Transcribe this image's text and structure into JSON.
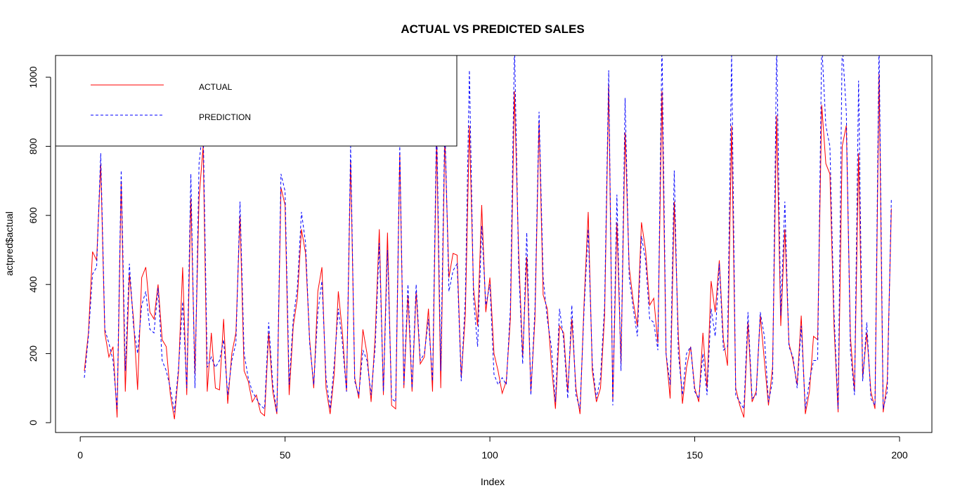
{
  "chart_data": {
    "type": "line",
    "title": "ACTUAL VS PREDICTED SALES",
    "xlabel": "Index",
    "ylabel": "actpred$actual",
    "xlim": [
      1,
      200
    ],
    "ylim": [
      0,
      1040
    ],
    "x_ticks": [
      0,
      50,
      100,
      150,
      200
    ],
    "y_ticks": [
      0,
      200,
      400,
      600,
      800,
      1000
    ],
    "grid": false,
    "legend_position": "top-left",
    "series": [
      {
        "name": "ACTUAL",
        "color": "#ff0000",
        "dash": "solid",
        "values": [
          150,
          260,
          495,
          470,
          750,
          260,
          190,
          220,
          15,
          700,
          90,
          430,
          300,
          95,
          420,
          450,
          320,
          300,
          400,
          240,
          220,
          80,
          10,
          150,
          450,
          80,
          650,
          140,
          650,
          800,
          90,
          260,
          100,
          95,
          300,
          55,
          200,
          260,
          600,
          150,
          120,
          60,
          80,
          30,
          20,
          260,
          90,
          25,
          680,
          630,
          80,
          280,
          360,
          560,
          490,
          240,
          100,
          380,
          450,
          100,
          25,
          140,
          380,
          260,
          90,
          760,
          130,
          70,
          270,
          200,
          60,
          250,
          560,
          80,
          550,
          50,
          40,
          780,
          100,
          370,
          90,
          380,
          170,
          190,
          330,
          90,
          830,
          100,
          830,
          420,
          490,
          485,
          130,
          310,
          860,
          390,
          280,
          630,
          320,
          420,
          200,
          150,
          85,
          120,
          300,
          960,
          500,
          190,
          480,
          90,
          300,
          870,
          370,
          330,
          170,
          40,
          280,
          260,
          90,
          300,
          100,
          25,
          350,
          610,
          150,
          60,
          100,
          310,
          980,
          60,
          580,
          170,
          840,
          450,
          350,
          280,
          580,
          500,
          340,
          360,
          230,
          960,
          200,
          70,
          640,
          250,
          55,
          160,
          220,
          100,
          60,
          260,
          100,
          410,
          320,
          470,
          240,
          165,
          860,
          100,
          50,
          15,
          290,
          60,
          90,
          310,
          180,
          50,
          160,
          890,
          280,
          560,
          230,
          180,
          110,
          310,
          25,
          90,
          250,
          240,
          920,
          750,
          720,
          280,
          30,
          800,
          860,
          250,
          90,
          780,
          130,
          260,
          90,
          40,
          1010,
          30,
          120,
          620
        ]
      },
      {
        "name": "PREDICTION",
        "color": "#0000ff",
        "dash": "dashed",
        "values": [
          130,
          250,
          430,
          450,
          780,
          270,
          230,
          180,
          40,
          730,
          150,
          460,
          280,
          200,
          340,
          380,
          270,
          260,
          390,
          180,
          150,
          100,
          30,
          160,
          350,
          100,
          720,
          100,
          750,
          860,
          160,
          190,
          160,
          180,
          240,
          80,
          180,
          230,
          640,
          200,
          130,
          90,
          70,
          50,
          40,
          290,
          110,
          30,
          720,
          670,
          110,
          300,
          390,
          610,
          520,
          230,
          110,
          320,
          410,
          130,
          40,
          170,
          330,
          230,
          90,
          800,
          120,
          80,
          210,
          180,
          80,
          220,
          520,
          90,
          500,
          70,
          60,
          800,
          110,
          400,
          100,
          400,
          180,
          200,
          300,
          120,
          880,
          150,
          870,
          380,
          440,
          460,
          120,
          360,
          1020,
          360,
          220,
          570,
          340,
          400,
          140,
          110,
          130,
          110,
          330,
          1100,
          460,
          170,
          550,
          80,
          330,
          900,
          420,
          300,
          220,
          60,
          330,
          240,
          70,
          340,
          80,
          40,
          330,
          560,
          170,
          70,
          130,
          340,
          1020,
          50,
          660,
          150,
          940,
          420,
          330,
          250,
          540,
          470,
          300,
          290,
          210,
          1100,
          200,
          110,
          730,
          200,
          80,
          200,
          220,
          90,
          70,
          200,
          80,
          330,
          250,
          460,
          210,
          220,
          1070,
          80,
          60,
          40,
          320,
          70,
          80,
          320,
          250,
          60,
          120,
          1100,
          310,
          640,
          220,
          190,
          100,
          280,
          40,
          120,
          180,
          180,
          1100,
          860,
          800,
          320,
          40,
          1100,
          900,
          210,
          80,
          990,
          120,
          290,
          70,
          50,
          1100,
          40,
          90,
          650
        ]
      }
    ]
  }
}
